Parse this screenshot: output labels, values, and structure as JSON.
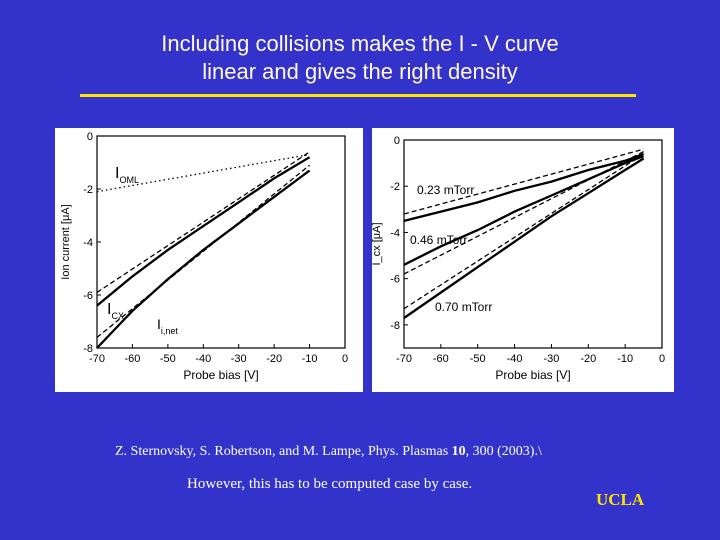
{
  "slide": {
    "title_line1": "Including collisions makes the I - V curve",
    "title_line2": "linear and gives the right density",
    "citation_pre": "Z. Sternovsky, S. Robertson, and M. Lampe, Phys. Plasmas ",
    "citation_vol": "10",
    "citation_post": ", 300 (2003).\\",
    "note": "However, this has to be computed case by case.",
    "logo": "UCLA",
    "colors": {
      "background": "#3333cc",
      "rule": "#ffe400",
      "title": "#fff8d8",
      "logo": "#ffe400"
    }
  },
  "chart_data": [
    {
      "type": "line",
      "xlabel": "Probe bias [V]",
      "ylabel": "Ion current [μA]",
      "xlim": [
        -70,
        0
      ],
      "ylim": [
        -8,
        0
      ],
      "xticks": [
        "-70",
        "-60",
        "-50",
        "-40",
        "-30",
        "-20",
        "-10",
        "0"
      ],
      "yticks": [
        "0",
        "-2",
        "-4",
        "-6",
        "-8"
      ],
      "series": [
        {
          "name": "I_OML",
          "style": "dotted",
          "x": [
            -70,
            -10
          ],
          "y": [
            -2.1,
            -0.7
          ]
        },
        {
          "name": "I_CX",
          "style": "solid",
          "x": [
            -70,
            -60,
            -50,
            -40,
            -30,
            -20,
            -10
          ],
          "y": [
            -6.4,
            -5.3,
            -4.3,
            -3.4,
            -2.5,
            -1.6,
            -0.8
          ]
        },
        {
          "name": "I_CX fit",
          "style": "dashed",
          "x": [
            -70,
            -10
          ],
          "y": [
            -5.9,
            -0.6
          ]
        },
        {
          "name": "I_i,net",
          "style": "solid",
          "x": [
            -70,
            -60,
            -50,
            -40,
            -30,
            -20,
            -10
          ],
          "y": [
            -8.0,
            -6.6,
            -5.4,
            -4.3,
            -3.3,
            -2.3,
            -1.3
          ]
        },
        {
          "name": "I_i,net fit",
          "style": "dashed",
          "x": [
            -70,
            -10
          ],
          "y": [
            -7.6,
            -1.1
          ]
        }
      ],
      "annotations": [
        {
          "main": "I",
          "sub": "OML"
        },
        {
          "main": "I",
          "sub": "CX"
        },
        {
          "main": "I",
          "sub": "i,net"
        }
      ]
    },
    {
      "type": "line",
      "xlabel": "Probe bias [V]",
      "ylabel": "I_cx [μA]",
      "xlim": [
        -70,
        0
      ],
      "ylim": [
        -9,
        0
      ],
      "xticks": [
        "-70",
        "-60",
        "-50",
        "-40",
        "-30",
        "-20",
        "-10",
        "0"
      ],
      "yticks": [
        "0",
        "-2",
        "-4",
        "-6",
        "-8"
      ],
      "series": [
        {
          "name": "0.23 mTorr",
          "style": "solid",
          "x": [
            -70,
            -60,
            -50,
            -40,
            -30,
            -20,
            -10,
            -5
          ],
          "y": [
            -3.5,
            -3.1,
            -2.7,
            -2.2,
            -1.8,
            -1.3,
            -0.9,
            -0.6
          ]
        },
        {
          "name": "0.23 mTorr fit",
          "style": "dashed",
          "x": [
            -70,
            -5
          ],
          "y": [
            -3.2,
            -0.4
          ]
        },
        {
          "name": "0.46 mTorr",
          "style": "solid",
          "x": [
            -70,
            -60,
            -50,
            -40,
            -30,
            -20,
            -10,
            -5
          ],
          "y": [
            -5.4,
            -4.6,
            -3.9,
            -3.1,
            -2.4,
            -1.7,
            -1.0,
            -0.7
          ]
        },
        {
          "name": "0.46 mTorr fit",
          "style": "dashed",
          "x": [
            -70,
            -5
          ],
          "y": [
            -5.8,
            -0.5
          ]
        },
        {
          "name": "0.70 mTorr",
          "style": "solid",
          "x": [
            -70,
            -60,
            -50,
            -40,
            -30,
            -20,
            -10,
            -5
          ],
          "y": [
            -7.7,
            -6.6,
            -5.5,
            -4.4,
            -3.3,
            -2.3,
            -1.3,
            -0.8
          ]
        },
        {
          "name": "0.70 mTorr fit",
          "style": "dashed",
          "x": [
            -70,
            -5
          ],
          "y": [
            -7.3,
            -0.6
          ]
        }
      ],
      "annotations": [
        {
          "main": "0.23 mTorr"
        },
        {
          "main": "0.46 mTorr"
        },
        {
          "main": "0.70 mTorr"
        }
      ]
    }
  ]
}
